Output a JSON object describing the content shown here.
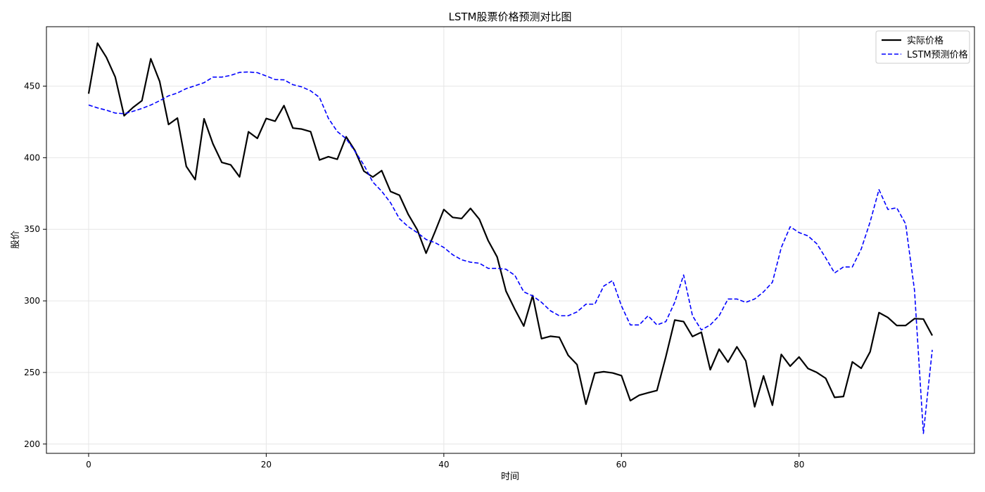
{
  "chart_data": {
    "type": "line",
    "title": "LSTM股票价格预测对比图",
    "xlabel": "时间",
    "ylabel": "股价",
    "xlim": [
      -4.75,
      99.75
    ],
    "ylim": [
      193.5,
      491.5
    ],
    "xticks": [
      0,
      20,
      40,
      60,
      80
    ],
    "yticks": [
      200,
      250,
      300,
      350,
      400,
      450
    ],
    "grid": true,
    "legend_position": "top-right",
    "series": [
      {
        "name": "实际价格",
        "color": "#000000",
        "style": "solid",
        "values": [
          444.7,
          480.0,
          470.1,
          456.3,
          429.3,
          435.1,
          439.8,
          469.1,
          453.3,
          423.2,
          427.7,
          393.9,
          384.7,
          427.2,
          409.7,
          396.7,
          395.0,
          386.6,
          418.1,
          413.5,
          427.4,
          425.5,
          436.4,
          420.7,
          420.0,
          418.2,
          398.4,
          400.7,
          398.9,
          414.6,
          404.9,
          390.6,
          386.5,
          391.0,
          376.4,
          373.8,
          360.3,
          349.8,
          333.3,
          348.2,
          363.8,
          358.3,
          357.5,
          364.6,
          357.0,
          342.0,
          330.7,
          306.8,
          294.1,
          282.4,
          303.7,
          273.6,
          275.3,
          274.6,
          262.0,
          255.5,
          227.8,
          249.6,
          250.5,
          249.7,
          247.8,
          230.3,
          234.1,
          235.8,
          237.4,
          261.0,
          286.6,
          285.5,
          275.1,
          278.1,
          251.9,
          266.3,
          257.2,
          267.9,
          258.1,
          226.0,
          247.6,
          227.1,
          262.6,
          254.4,
          260.8,
          252.8,
          250.0,
          245.9,
          232.6,
          233.2,
          257.4,
          252.9,
          264.4,
          291.8,
          288.4,
          282.8,
          282.8,
          287.6,
          287.3,
          275.8
        ]
      },
      {
        "name": "LSTM预测价格",
        "color": "#0000ff",
        "style": "dashed",
        "values": [
          436.8,
          434.8,
          433.2,
          431.2,
          430.7,
          432.4,
          434.4,
          436.8,
          439.8,
          443.2,
          445.2,
          448.3,
          450.3,
          452.4,
          456.3,
          456.3,
          457.5,
          459.6,
          459.9,
          459.4,
          457.1,
          454.6,
          454.4,
          451.0,
          449.5,
          446.7,
          442.1,
          427.5,
          418.3,
          413.3,
          404.4,
          394.9,
          383.0,
          376.6,
          368.5,
          357.4,
          351.8,
          347.7,
          342.9,
          340.7,
          337.3,
          332.2,
          328.7,
          327.0,
          326.3,
          322.7,
          322.7,
          322.1,
          317.8,
          306.3,
          303.5,
          299.0,
          293.1,
          289.6,
          289.6,
          292.3,
          297.7,
          297.7,
          310.3,
          314.2,
          296.5,
          283.2,
          283.2,
          289.6,
          283.2,
          285.5,
          299.0,
          318.1,
          289.6,
          279.7,
          283.2,
          289.6,
          301.3,
          301.3,
          299.0,
          301.3,
          306.3,
          313.0,
          337.3,
          351.8,
          347.7,
          345.4,
          339.9,
          330.0,
          319.5,
          323.7,
          323.7,
          336.2,
          355.1,
          377.7,
          363.9,
          365.0,
          353.8,
          307.4,
          207.4,
          265.8
        ]
      }
    ]
  }
}
